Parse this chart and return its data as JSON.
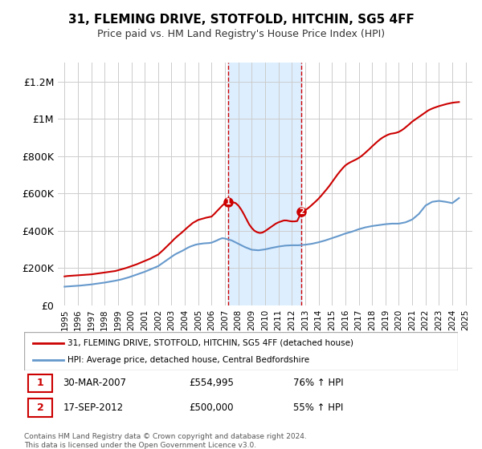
{
  "title": "31, FLEMING DRIVE, STOTFOLD, HITCHIN, SG5 4FF",
  "subtitle": "Price paid vs. HM Land Registry's House Price Index (HPI)",
  "ylabel": "",
  "background_color": "#ffffff",
  "plot_bg_color": "#ffffff",
  "grid_color": "#cccccc",
  "red_color": "#cc0000",
  "blue_color": "#6699cc",
  "shade_color": "#ddeeff",
  "marker1_x": 2007.24,
  "marker1_y": 554995,
  "marker1_label": "1",
  "marker2_x": 2012.72,
  "marker2_y": 500000,
  "marker2_label": "2",
  "shade1_start": 2007.24,
  "shade1_end": 2012.72,
  "ylim": [
    0,
    1300000
  ],
  "xlim": [
    1994.5,
    2025.5
  ],
  "legend_line1": "31, FLEMING DRIVE, STOTFOLD, HITCHIN, SG5 4FF (detached house)",
  "legend_line2": "HPI: Average price, detached house, Central Bedfordshire",
  "table_row1_num": "1",
  "table_row1_date": "30-MAR-2007",
  "table_row1_price": "£554,995",
  "table_row1_hpi": "76% ↑ HPI",
  "table_row2_num": "2",
  "table_row2_date": "17-SEP-2012",
  "table_row2_price": "£500,000",
  "table_row2_hpi": "55% ↑ HPI",
  "footer": "Contains HM Land Registry data © Crown copyright and database right 2024.\nThis data is licensed under the Open Government Licence v3.0.",
  "yticks": [
    0,
    200000,
    400000,
    600000,
    800000,
    1000000,
    1200000
  ],
  "ytick_labels": [
    "£0",
    "£200K",
    "£400K",
    "£600K",
    "£800K",
    "£1M",
    "£1.2M"
  ],
  "xticks": [
    1995,
    1996,
    1997,
    1998,
    1999,
    2000,
    2001,
    2002,
    2003,
    2004,
    2005,
    2006,
    2007,
    2008,
    2009,
    2010,
    2011,
    2012,
    2013,
    2014,
    2015,
    2016,
    2017,
    2018,
    2019,
    2020,
    2021,
    2022,
    2023,
    2024,
    2025
  ],
  "red_x": [
    1995.0,
    1995.2,
    1995.4,
    1995.6,
    1995.8,
    1996.0,
    1996.2,
    1996.4,
    1996.6,
    1996.8,
    1997.0,
    1997.2,
    1997.4,
    1997.6,
    1997.8,
    1998.0,
    1998.2,
    1998.4,
    1998.6,
    1998.8,
    1999.0,
    1999.2,
    1999.4,
    1999.6,
    1999.8,
    2000.0,
    2000.2,
    2000.4,
    2000.6,
    2000.8,
    2001.0,
    2001.2,
    2001.4,
    2001.6,
    2001.8,
    2002.0,
    2002.2,
    2002.4,
    2002.6,
    2002.8,
    2003.0,
    2003.2,
    2003.4,
    2003.6,
    2003.8,
    2004.0,
    2004.2,
    2004.4,
    2004.6,
    2004.8,
    2005.0,
    2005.2,
    2005.4,
    2005.6,
    2005.8,
    2006.0,
    2006.2,
    2006.4,
    2006.6,
    2006.8,
    2007.0,
    2007.24,
    2007.5,
    2007.8,
    2008.0,
    2008.2,
    2008.4,
    2008.6,
    2008.8,
    2009.0,
    2009.2,
    2009.4,
    2009.6,
    2009.8,
    2010.0,
    2010.2,
    2010.4,
    2010.6,
    2010.8,
    2011.0,
    2011.2,
    2011.4,
    2011.6,
    2011.8,
    2012.0,
    2012.2,
    2012.4,
    2012.72,
    2013.0,
    2013.2,
    2013.4,
    2013.6,
    2013.8,
    2014.0,
    2014.2,
    2014.4,
    2014.6,
    2014.8,
    2015.0,
    2015.2,
    2015.4,
    2015.6,
    2015.8,
    2016.0,
    2016.2,
    2016.4,
    2016.6,
    2016.8,
    2017.0,
    2017.2,
    2017.4,
    2017.6,
    2017.8,
    2018.0,
    2018.2,
    2018.4,
    2018.6,
    2018.8,
    2019.0,
    2019.2,
    2019.4,
    2019.6,
    2019.8,
    2020.0,
    2020.2,
    2020.4,
    2020.6,
    2020.8,
    2021.0,
    2021.2,
    2021.4,
    2021.6,
    2021.8,
    2022.0,
    2022.2,
    2022.4,
    2022.6,
    2022.8,
    2023.0,
    2023.2,
    2023.4,
    2023.6,
    2023.8,
    2024.0,
    2024.2,
    2024.5
  ],
  "red_y": [
    155000,
    157000,
    158000,
    159000,
    160000,
    161000,
    162000,
    163000,
    164000,
    165000,
    166000,
    168000,
    170000,
    172000,
    174000,
    176000,
    178000,
    180000,
    182000,
    184000,
    188000,
    192000,
    196000,
    200000,
    205000,
    210000,
    215000,
    220000,
    226000,
    232000,
    238000,
    244000,
    250000,
    258000,
    265000,
    272000,
    285000,
    298000,
    312000,
    326000,
    340000,
    355000,
    368000,
    380000,
    392000,
    405000,
    418000,
    430000,
    442000,
    450000,
    458000,
    462000,
    466000,
    470000,
    473000,
    476000,
    490000,
    505000,
    520000,
    535000,
    548000,
    554995,
    555000,
    548000,
    535000,
    515000,
    490000,
    462000,
    435000,
    415000,
    400000,
    392000,
    388000,
    390000,
    398000,
    408000,
    418000,
    428000,
    438000,
    445000,
    450000,
    455000,
    455000,
    452000,
    450000,
    450000,
    452000,
    500000,
    510000,
    520000,
    532000,
    545000,
    558000,
    572000,
    588000,
    605000,
    622000,
    640000,
    660000,
    680000,
    700000,
    718000,
    735000,
    750000,
    760000,
    768000,
    775000,
    782000,
    790000,
    800000,
    812000,
    825000,
    838000,
    852000,
    865000,
    878000,
    890000,
    900000,
    908000,
    915000,
    920000,
    922000,
    925000,
    930000,
    938000,
    948000,
    960000,
    972000,
    985000,
    995000,
    1005000,
    1015000,
    1025000,
    1035000,
    1045000,
    1052000,
    1058000,
    1063000,
    1068000,
    1072000,
    1076000,
    1080000,
    1083000,
    1086000,
    1088000,
    1090000
  ],
  "blue_x": [
    1995.0,
    1995.2,
    1995.4,
    1995.6,
    1995.8,
    1996.0,
    1996.2,
    1996.4,
    1996.6,
    1996.8,
    1997.0,
    1997.2,
    1997.4,
    1997.6,
    1997.8,
    1998.0,
    1998.2,
    1998.4,
    1998.6,
    1998.8,
    1999.0,
    1999.2,
    1999.4,
    1999.6,
    1999.8,
    2000.0,
    2000.2,
    2000.4,
    2000.6,
    2000.8,
    2001.0,
    2001.2,
    2001.4,
    2001.6,
    2001.8,
    2002.0,
    2002.2,
    2002.4,
    2002.6,
    2002.8,
    2003.0,
    2003.2,
    2003.4,
    2003.6,
    2003.8,
    2004.0,
    2004.2,
    2004.4,
    2004.6,
    2004.8,
    2005.0,
    2005.2,
    2005.4,
    2005.6,
    2005.8,
    2006.0,
    2006.2,
    2006.4,
    2006.6,
    2006.8,
    2007.0,
    2007.5,
    2008.0,
    2008.5,
    2009.0,
    2009.5,
    2010.0,
    2010.5,
    2011.0,
    2011.5,
    2012.0,
    2012.5,
    2013.0,
    2013.5,
    2014.0,
    2014.5,
    2015.0,
    2015.5,
    2016.0,
    2016.5,
    2017.0,
    2017.5,
    2018.0,
    2018.5,
    2019.0,
    2019.5,
    2020.0,
    2020.5,
    2021.0,
    2021.5,
    2022.0,
    2022.5,
    2023.0,
    2023.5,
    2024.0,
    2024.5
  ],
  "blue_y": [
    100000,
    101000,
    102000,
    103000,
    104000,
    105000,
    106000,
    107500,
    109000,
    110500,
    112000,
    114000,
    116000,
    118000,
    120000,
    122000,
    124500,
    127000,
    129500,
    132000,
    135000,
    138000,
    142000,
    146000,
    150000,
    155000,
    160000,
    165000,
    170000,
    175000,
    180000,
    186000,
    192000,
    198000,
    204000,
    210000,
    220000,
    230000,
    240000,
    250000,
    260000,
    270000,
    278000,
    285000,
    292000,
    300000,
    308000,
    315000,
    320000,
    325000,
    328000,
    330000,
    332000,
    333000,
    334000,
    336000,
    342000,
    348000,
    355000,
    360000,
    358000,
    348000,
    330000,
    312000,
    298000,
    295000,
    300000,
    308000,
    315000,
    320000,
    322000,
    322000,
    325000,
    330000,
    338000,
    348000,
    360000,
    372000,
    385000,
    395000,
    408000,
    418000,
    425000,
    430000,
    435000,
    438000,
    438000,
    445000,
    460000,
    490000,
    535000,
    555000,
    560000,
    555000,
    548000,
    575000
  ]
}
